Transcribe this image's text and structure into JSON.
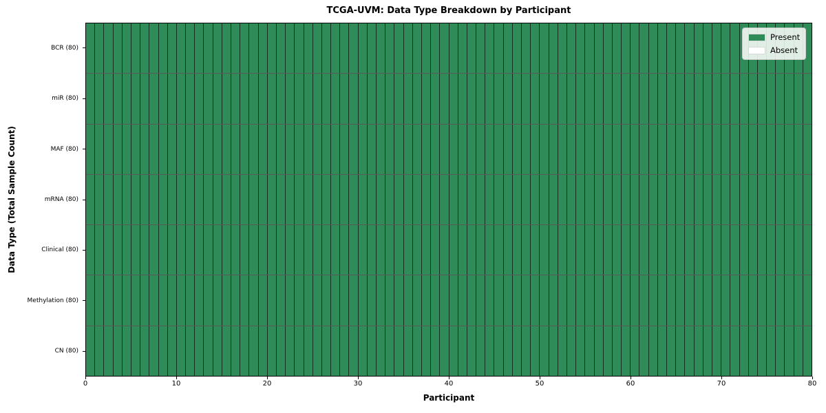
{
  "chart_data": {
    "type": "heatmap",
    "title": "TCGA-UVM: Data Type Breakdown by Participant",
    "xlabel": "Participant",
    "ylabel": "Data Type (Total Sample Count)",
    "x_range": [
      0,
      80
    ],
    "x_ticks": [
      0,
      10,
      20,
      30,
      40,
      50,
      60,
      70,
      80
    ],
    "n_participants": 80,
    "rows_top_to_bottom": [
      {
        "label": "BCR (80)",
        "total": 80,
        "present_count": 80
      },
      {
        "label": "miR (80)",
        "total": 80,
        "present_count": 80
      },
      {
        "label": "MAF (80)",
        "total": 80,
        "present_count": 80
      },
      {
        "label": "mRNA (80)",
        "total": 80,
        "present_count": 80
      },
      {
        "label": "Clinical (80)",
        "total": 80,
        "present_count": 80
      },
      {
        "label": "Methylation (80)",
        "total": 80,
        "present_count": 80
      },
      {
        "label": "CN (80)",
        "total": 80,
        "present_count": 80
      }
    ],
    "legend": {
      "position": "upper-right",
      "entries": [
        {
          "label": "Present",
          "color": "#2f8b58"
        },
        {
          "label": "Absent",
          "color": "#ffffff"
        }
      ]
    },
    "colors": {
      "present": "#2f8b58",
      "absent": "#ffffff",
      "cell_edge": "rgba(0,0,0,0.65)",
      "axis": "#000000"
    },
    "grid": false
  }
}
